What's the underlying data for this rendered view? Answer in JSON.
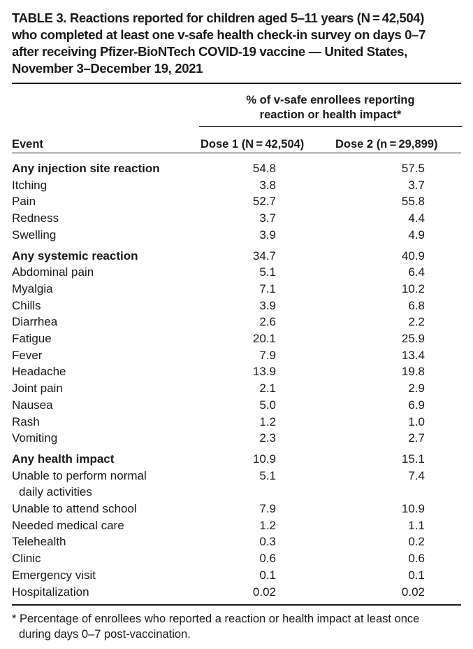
{
  "title": {
    "line1": "TABLE 3. Reactions reported for children aged 5–11 years (N = 42,504)",
    "line2": "who completed at least one v-safe health check-in survey on days 0–7",
    "line3": "after receiving Pfizer-BioNTech COVID-19 vaccine — United States,",
    "line4": "November 3–December 19, 2021"
  },
  "header": {
    "span_line1": "% of v-safe enrollees reporting",
    "span_line2": "reaction or health impact*",
    "col_event": "Event",
    "col_dose1": "Dose 1 (N = 42,504)",
    "col_dose2": "Dose 2 (n = 29,899)"
  },
  "rows": [
    {
      "event": "Any injection site reaction",
      "dose1": "54.8",
      "dose2": "57.5",
      "bold": true
    },
    {
      "event": "Itching",
      "dose1": "3.8",
      "dose2": "3.7"
    },
    {
      "event": "Pain",
      "dose1": "52.7",
      "dose2": "55.8"
    },
    {
      "event": "Redness",
      "dose1": "3.7",
      "dose2": "4.4"
    },
    {
      "event": "Swelling",
      "dose1": "3.9",
      "dose2": "4.9"
    },
    {
      "event": "Any systemic reaction",
      "dose1": "34.7",
      "dose2": "40.9",
      "bold": true
    },
    {
      "event": "Abdominal pain",
      "dose1": "5.1",
      "dose2": "6.4"
    },
    {
      "event": "Myalgia",
      "dose1": "7.1",
      "dose2": "10.2"
    },
    {
      "event": "Chills",
      "dose1": "3.9",
      "dose2": "6.8"
    },
    {
      "event": "Diarrhea",
      "dose1": "2.6",
      "dose2": "2.2"
    },
    {
      "event": "Fatigue",
      "dose1": "20.1",
      "dose2": "25.9"
    },
    {
      "event": "Fever",
      "dose1": "7.9",
      "dose2": "13.4"
    },
    {
      "event": "Headache",
      "dose1": "13.9",
      "dose2": "19.8"
    },
    {
      "event": "Joint pain",
      "dose1": "2.1",
      "dose2": "2.9"
    },
    {
      "event": "Nausea",
      "dose1": "5.0",
      "dose2": "6.9"
    },
    {
      "event": "Rash",
      "dose1": "1.2",
      "dose2": "1.0"
    },
    {
      "event": "Vomiting",
      "dose1": "2.3",
      "dose2": "2.7"
    },
    {
      "event": "Any health impact",
      "dose1": "10.9",
      "dose2": "15.1",
      "bold": true
    },
    {
      "event": "Unable to perform normal",
      "event_cont": "daily activities",
      "dose1": "5.1",
      "dose2": "7.4"
    },
    {
      "event": "Unable to attend school",
      "dose1": "7.9",
      "dose2": "10.9"
    },
    {
      "event": "Needed medical care",
      "dose1": "1.2",
      "dose2": "1.1"
    },
    {
      "event": "Telehealth",
      "dose1": "0.3",
      "dose2": "0.2"
    },
    {
      "event": "Clinic",
      "dose1": "0.6",
      "dose2": "0.6"
    },
    {
      "event": "Emergency visit",
      "dose1": "0.1",
      "dose2": "0.1"
    },
    {
      "event": "Hospitalization",
      "dose1": "0.02",
      "dose2": "0.02"
    }
  ],
  "footnote": {
    "line1": "* Percentage of enrollees who reported a reaction or health impact at least once",
    "line2": "during days 0–7 post-vaccination."
  }
}
